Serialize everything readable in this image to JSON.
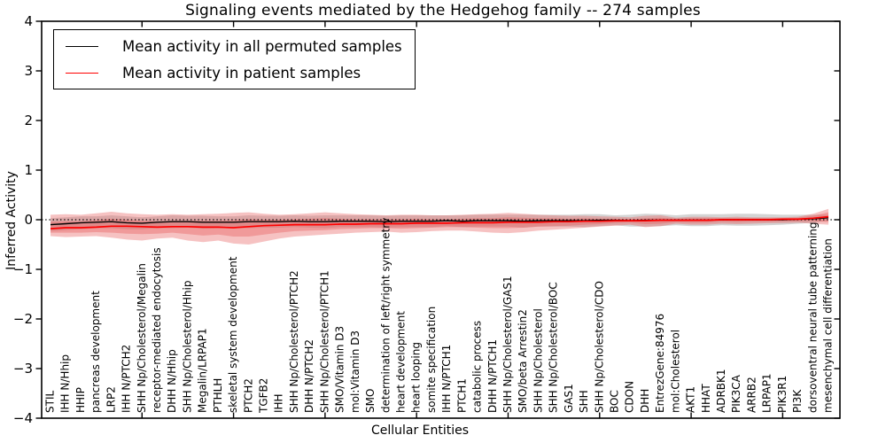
{
  "chart_data": {
    "type": "line",
    "title": "Signaling events mediated by the Hedgehog family -- 274 samples",
    "xlabel": "Cellular Entities",
    "ylabel": "Inferred Activity",
    "ylim": [
      -4,
      4
    ],
    "yticks": [
      -4,
      -3,
      -2,
      -1,
      0,
      1,
      2,
      3,
      4
    ],
    "zero_reference_line": 0,
    "grid": false,
    "legend_position": "upper left",
    "xtick_indices": [
      6,
      12,
      18,
      24,
      30,
      36,
      42,
      48
    ],
    "categories": [
      "STIL",
      "IHH N/Hhip",
      "HHIP",
      "pancreas development",
      "LRP2",
      "IHH N/PTCH2",
      "SHH Np/Cholesterol/Megalin",
      "receptor-mediated endocytosis",
      "DHH N/Hhip",
      "SHH Np/Cholesterol/Hhip",
      "Megalin/LRPAP1",
      "PTHLH",
      "skeletal system development",
      "PTCH2",
      "TGFB2",
      "IHH",
      "SHH Np/Cholesterol/PTCH2",
      "DHH N/PTCH2",
      "SHH Np/Cholesterol/PTCH1",
      "SMO/Vitamin D3",
      "mol:Vitamin D3",
      "SMO",
      "determination of left/right symmetry",
      "heart development",
      "heart looping",
      "somite specification",
      "IHH N/PTCH1",
      "PTCH1",
      "catabolic process",
      "DHH N/PTCH1",
      "SHH Np/Cholesterol/GAS1",
      "SMO/beta Arrestin2",
      "SHH Np/Cholesterol",
      "SHH Np/Cholesterol/BOC",
      "GAS1",
      "SHH",
      "SHH Np/Cholesterol/CDO",
      "BOC",
      "CDON",
      "DHH",
      "EntrezGene:84976",
      "mol:Cholesterol",
      "AKT1",
      "HHAT",
      "ADRBK1",
      "PIK3CA",
      "ARRB2",
      "LRPAP1",
      "PIK3R1",
      "PI3K",
      "dorsoventral neural tube patterning",
      "mesenchymal cell differentiation"
    ],
    "series": [
      {
        "name": "Mean activity in all permuted samples",
        "color": "#000000",
        "band_color": "#999999",
        "values": [
          -0.1,
          -0.08,
          -0.06,
          -0.05,
          -0.04,
          -0.06,
          -0.07,
          -0.05,
          -0.04,
          -0.04,
          -0.05,
          -0.05,
          -0.05,
          -0.04,
          -0.04,
          -0.04,
          -0.03,
          -0.04,
          -0.04,
          -0.03,
          -0.03,
          -0.03,
          -0.04,
          -0.03,
          -0.03,
          -0.03,
          -0.02,
          -0.03,
          -0.02,
          -0.02,
          -0.02,
          -0.03,
          -0.02,
          -0.02,
          -0.02,
          -0.02,
          -0.01,
          -0.01,
          -0.02,
          -0.01,
          -0.01,
          -0.01,
          -0.01,
          -0.01,
          0.0,
          0.0,
          0.0,
          0.0,
          0.0,
          0.01,
          0.02,
          0.04
        ],
        "band_hi": [
          0.03,
          0.05,
          0.07,
          0.07,
          0.09,
          0.07,
          0.05,
          0.07,
          0.09,
          0.08,
          0.08,
          0.07,
          0.07,
          0.09,
          0.08,
          0.08,
          0.09,
          0.08,
          0.09,
          0.09,
          0.09,
          0.09,
          0.08,
          0.09,
          0.09,
          0.09,
          0.09,
          0.09,
          0.1,
          0.1,
          0.1,
          0.1,
          0.1,
          0.1,
          0.1,
          0.11,
          0.11,
          0.09,
          0.1,
          0.12,
          0.11,
          0.09,
          0.11,
          0.11,
          0.11,
          0.12,
          0.12,
          0.11,
          0.1,
          0.1,
          0.1,
          0.1
        ],
        "band_lo": [
          -0.23,
          -0.21,
          -0.19,
          -0.17,
          -0.17,
          -0.19,
          -0.19,
          -0.17,
          -0.17,
          -0.16,
          -0.18,
          -0.17,
          -0.17,
          -0.17,
          -0.16,
          -0.16,
          -0.15,
          -0.16,
          -0.17,
          -0.15,
          -0.15,
          -0.15,
          -0.16,
          -0.15,
          -0.15,
          -0.15,
          -0.13,
          -0.15,
          -0.14,
          -0.14,
          -0.14,
          -0.16,
          -0.14,
          -0.14,
          -0.14,
          -0.15,
          -0.13,
          -0.11,
          -0.14,
          -0.14,
          -0.13,
          -0.11,
          -0.13,
          -0.13,
          -0.11,
          -0.12,
          -0.12,
          -0.11,
          -0.1,
          -0.08,
          -0.06,
          -0.02
        ]
      },
      {
        "name": "Mean activity in patient samples",
        "color": "#ff0000",
        "band_color": "#e85f5f",
        "values": [
          -0.18,
          -0.16,
          -0.16,
          -0.15,
          -0.13,
          -0.13,
          -0.14,
          -0.15,
          -0.14,
          -0.14,
          -0.15,
          -0.15,
          -0.16,
          -0.14,
          -0.12,
          -0.11,
          -0.1,
          -0.1,
          -0.1,
          -0.09,
          -0.09,
          -0.08,
          -0.08,
          -0.08,
          -0.07,
          -0.07,
          -0.07,
          -0.06,
          -0.06,
          -0.06,
          -0.05,
          -0.05,
          -0.05,
          -0.04,
          -0.04,
          -0.03,
          -0.03,
          -0.02,
          -0.02,
          -0.02,
          -0.01,
          -0.01,
          -0.01,
          -0.01,
          0.0,
          0.0,
          0.0,
          0.0,
          0.01,
          0.01,
          0.03,
          0.06
        ],
        "band_outer_hi": [
          0.1,
          0.11,
          0.1,
          0.13,
          0.16,
          0.13,
          0.11,
          0.1,
          0.11,
          0.1,
          0.11,
          0.12,
          0.14,
          0.15,
          0.12,
          0.1,
          0.11,
          0.13,
          0.15,
          0.13,
          0.11,
          0.1,
          0.09,
          0.1,
          0.1,
          0.09,
          0.09,
          0.1,
          0.11,
          0.12,
          0.14,
          0.12,
          0.1,
          0.09,
          0.08,
          0.08,
          0.07,
          0.06,
          0.05,
          0.08,
          0.09,
          0.04,
          0.06,
          0.06,
          0.05,
          0.06,
          0.05,
          0.05,
          0.05,
          0.06,
          0.12,
          0.22
        ],
        "band_outer_lo": [
          -0.33,
          -0.35,
          -0.34,
          -0.33,
          -0.36,
          -0.4,
          -0.42,
          -0.38,
          -0.36,
          -0.42,
          -0.45,
          -0.42,
          -0.48,
          -0.5,
          -0.44,
          -0.38,
          -0.34,
          -0.32,
          -0.3,
          -0.28,
          -0.26,
          -0.25,
          -0.24,
          -0.26,
          -0.25,
          -0.23,
          -0.22,
          -0.22,
          -0.24,
          -0.26,
          -0.27,
          -0.25,
          -0.22,
          -0.2,
          -0.18,
          -0.16,
          -0.14,
          -0.12,
          -0.1,
          -0.15,
          -0.13,
          -0.08,
          -0.1,
          -0.1,
          -0.08,
          -0.09,
          -0.08,
          -0.07,
          -0.07,
          -0.06,
          -0.08,
          -0.1
        ],
        "band_inner_hi": [
          -0.04,
          -0.03,
          -0.03,
          -0.01,
          0.02,
          0.0,
          -0.02,
          -0.03,
          -0.02,
          -0.02,
          -0.02,
          -0.02,
          -0.01,
          0.01,
          0.0,
          0.0,
          0.01,
          0.02,
          0.03,
          0.02,
          0.01,
          0.01,
          0.01,
          0.01,
          0.02,
          0.01,
          0.01,
          0.02,
          0.03,
          0.03,
          0.05,
          0.04,
          0.03,
          0.03,
          0.02,
          0.03,
          0.02,
          0.02,
          0.01,
          0.03,
          0.04,
          0.02,
          0.03,
          0.03,
          0.03,
          0.03,
          0.03,
          0.03,
          0.03,
          0.04,
          0.08,
          0.15
        ],
        "band_inner_lo": [
          -0.26,
          -0.26,
          -0.26,
          -0.25,
          -0.26,
          -0.28,
          -0.29,
          -0.28,
          -0.26,
          -0.29,
          -0.32,
          -0.3,
          -0.34,
          -0.34,
          -0.3,
          -0.26,
          -0.23,
          -0.22,
          -0.21,
          -0.19,
          -0.18,
          -0.17,
          -0.17,
          -0.18,
          -0.17,
          -0.16,
          -0.15,
          -0.15,
          -0.16,
          -0.17,
          -0.17,
          -0.16,
          -0.14,
          -0.13,
          -0.12,
          -0.1,
          -0.09,
          -0.07,
          -0.06,
          -0.09,
          -0.08,
          -0.05,
          -0.06,
          -0.06,
          -0.04,
          -0.05,
          -0.04,
          -0.04,
          -0.03,
          -0.03,
          -0.03,
          -0.05
        ]
      }
    ]
  }
}
